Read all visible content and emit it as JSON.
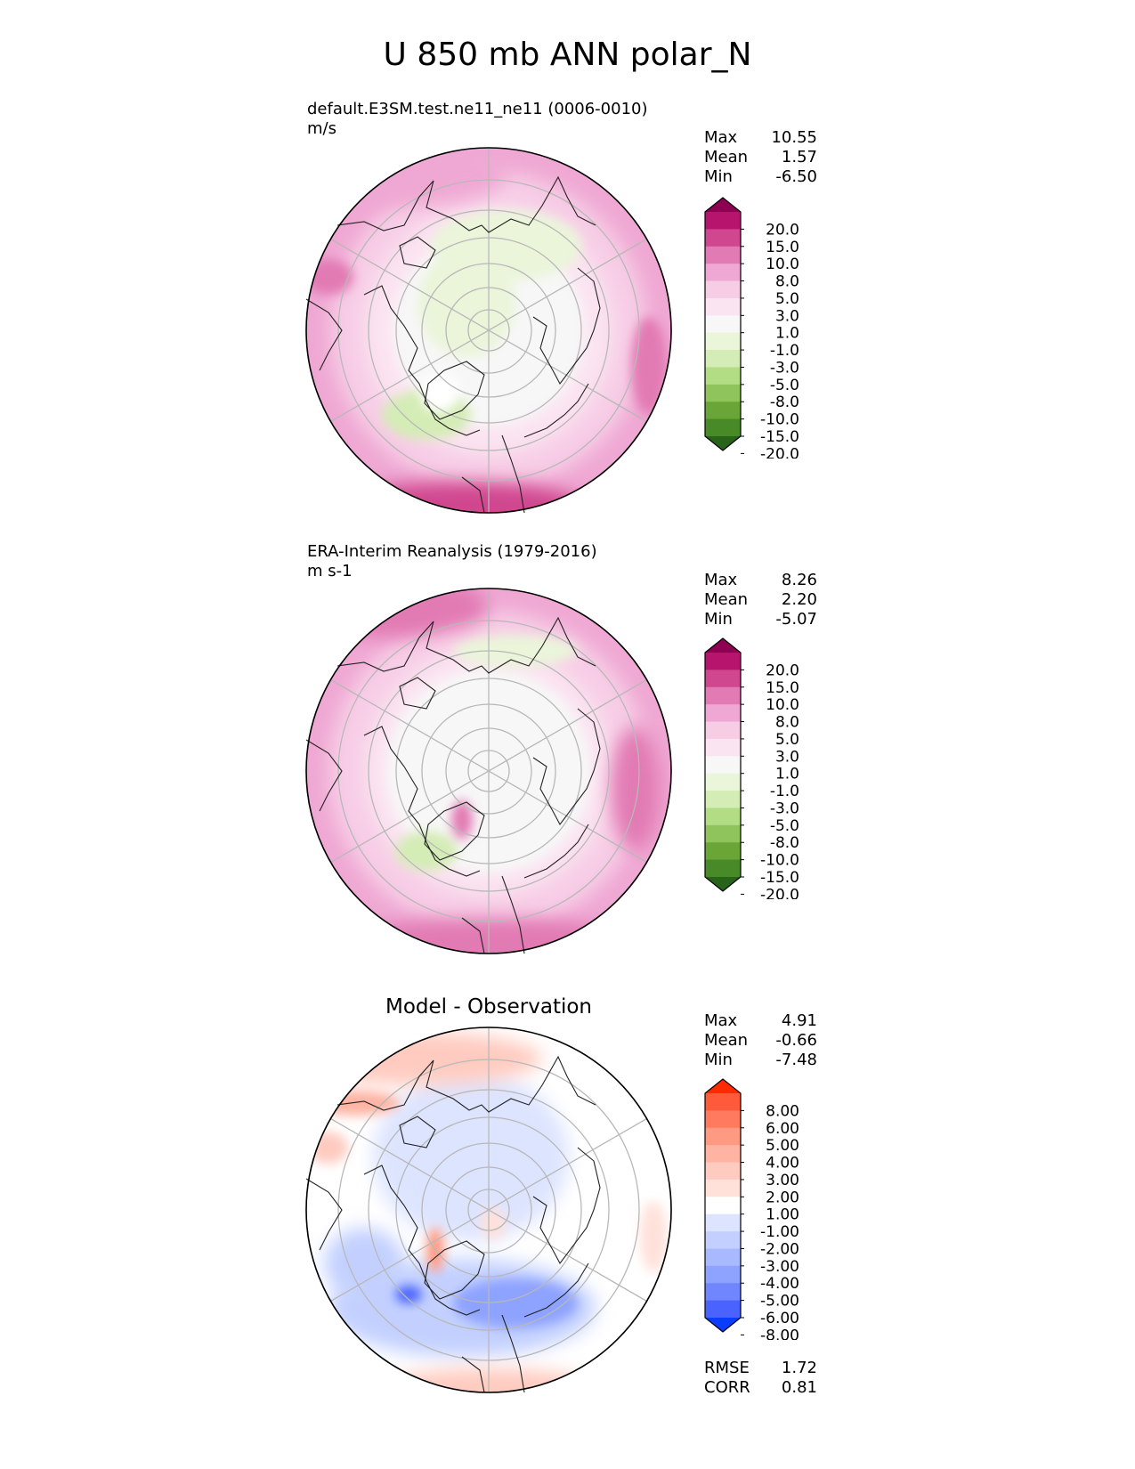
{
  "figure": {
    "title": "U 850 mb ANN polar_N"
  },
  "panels": [
    {
      "id": "test",
      "name": "default.E3SM.test.ne11_ne11 (0006-0010)",
      "units": "m/s",
      "stats": [
        {
          "label": "Max",
          "value": "10.55"
        },
        {
          "label": "Mean",
          "value": "1.57"
        },
        {
          "label": "Min",
          "value": "-6.50"
        }
      ],
      "colorbar": {
        "tick_labels": [
          "20.0",
          "15.0",
          "10.0",
          "8.0",
          "5.0",
          "3.0",
          "1.0",
          "-1.0",
          "-3.0",
          "-5.0",
          "-8.0",
          "-10.0",
          "-15.0",
          "-20.0"
        ],
        "colors": [
          "#8e0152",
          "#b7146d",
          "#d0478f",
          "#e27ab4",
          "#efa8d3",
          "#f7cde6",
          "#fbe4f1",
          "#f7f7f7",
          "#eaf5da",
          "#d4ecb5",
          "#b3dd84",
          "#8fc45c",
          "#6aa537",
          "#488a27",
          "#276419"
        ]
      }
    },
    {
      "id": "reference",
      "name": "ERA-Interim Reanalysis (1979-2016)",
      "units": "m s-1",
      "stats": [
        {
          "label": "Max",
          "value": "8.26"
        },
        {
          "label": "Mean",
          "value": "2.20"
        },
        {
          "label": "Min",
          "value": "-5.07"
        }
      ],
      "colorbar": {
        "tick_labels": [
          "20.0",
          "15.0",
          "10.0",
          "8.0",
          "5.0",
          "3.0",
          "1.0",
          "-1.0",
          "-3.0",
          "-5.0",
          "-8.0",
          "-10.0",
          "-15.0",
          "-20.0"
        ],
        "colors": [
          "#8e0152",
          "#b7146d",
          "#d0478f",
          "#e27ab4",
          "#efa8d3",
          "#f7cde6",
          "#fbe4f1",
          "#f7f7f7",
          "#eaf5da",
          "#d4ecb5",
          "#b3dd84",
          "#8fc45c",
          "#6aa537",
          "#488a27",
          "#276419"
        ]
      }
    },
    {
      "id": "diff",
      "name": "Model - Observation",
      "stats": [
        {
          "label": "Max",
          "value": "4.91"
        },
        {
          "label": "Mean",
          "value": "-0.66"
        },
        {
          "label": "Min",
          "value": "-7.48"
        }
      ],
      "metrics": [
        {
          "label": "RMSE",
          "value": "1.72"
        },
        {
          "label": "CORR",
          "value": "0.81"
        }
      ],
      "colorbar": {
        "tick_labels": [
          "8.00",
          "6.00",
          "5.00",
          "4.00",
          "3.00",
          "2.00",
          "1.00",
          "-1.00",
          "-2.00",
          "-3.00",
          "-4.00",
          "-5.00",
          "-6.00",
          "-8.00"
        ],
        "colors": [
          "#ff2a00",
          "#ff5a3a",
          "#ff7a5e",
          "#ff9a82",
          "#ffb3a3",
          "#ffcbc0",
          "#ffe1da",
          "#ffffff",
          "#dde4ff",
          "#c3d0ff",
          "#a8b9ff",
          "#8ea3ff",
          "#6f86ff",
          "#4a63ff",
          "#0a3dff"
        ]
      }
    }
  ],
  "chart_data": [
    {
      "type": "heatmap",
      "projection": "north polar stereographic",
      "title": "default.E3SM.test.ne11_ne11 (0006-0010)",
      "units": "m/s",
      "max": 10.55,
      "mean": 1.57,
      "min": -6.5,
      "levels": [
        -20,
        -15,
        -10,
        -8,
        -5,
        -3,
        -1,
        1,
        3,
        5,
        8,
        10,
        15,
        20
      ],
      "field_pattern": "westerly (positive) ring over mid-latitudes, strongest over North Pacific and North Atlantic; weak easterlies (negative) over the central Arctic",
      "grid": true,
      "coastlines": true,
      "legend_position": "right"
    },
    {
      "type": "heatmap",
      "projection": "north polar stereographic",
      "title": "ERA-Interim Reanalysis (1979-2016)",
      "units": "m s-1",
      "max": 8.26,
      "mean": 2.2,
      "min": -5.07,
      "levels": [
        -20,
        -15,
        -10,
        -8,
        -5,
        -3,
        -1,
        1,
        3,
        5,
        8,
        10,
        15,
        20
      ],
      "field_pattern": "westerly ring over mid-latitudes, maxima over North Atlantic; near-zero winds over the Arctic",
      "grid": true,
      "coastlines": true,
      "legend_position": "right"
    },
    {
      "type": "heatmap",
      "projection": "north polar stereographic",
      "title": "Model - Observation",
      "max": 4.91,
      "mean": -0.66,
      "min": -7.48,
      "rmse": 1.72,
      "corr": 0.81,
      "levels": [
        -8,
        -6,
        -5,
        -4,
        -3,
        -2,
        -1,
        1,
        2,
        3,
        4,
        5,
        6,
        8
      ],
      "field_pattern": "negative differences over the Arctic and northern Eurasia/North Atlantic; positive differences over the North Pacific and lower latitudes",
      "grid": true,
      "coastlines": true,
      "legend_position": "right"
    }
  ]
}
